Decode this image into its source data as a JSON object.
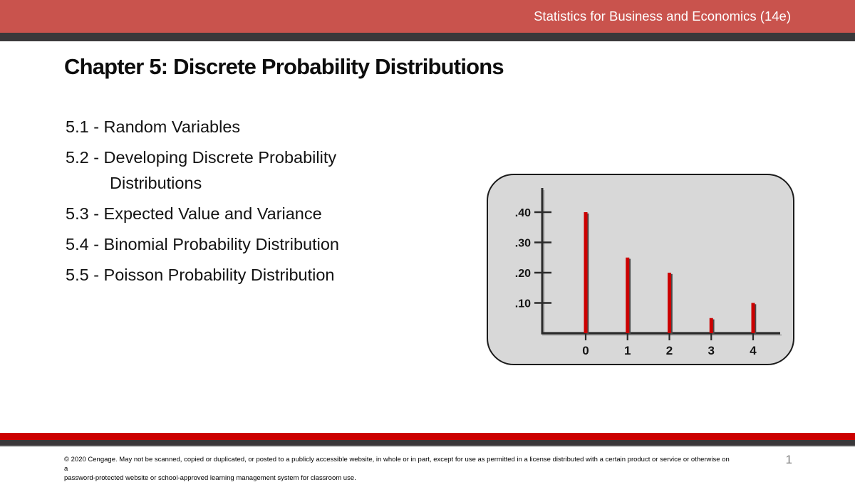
{
  "header": {
    "book_title": "Statistics for Business and Economics (14e)"
  },
  "slide": {
    "title": "Chapter 5: Discrete Probability Distributions",
    "items": [
      {
        "label": "5.1 - Random Variables"
      },
      {
        "label": "5.2 - Developing Discrete Probability Distributions"
      },
      {
        "label": "5.3 - Expected Value and Variance"
      },
      {
        "label": "5.4 - Binomial Probability Distribution"
      },
      {
        "label": "5.5 - Poisson Probability Distribution"
      }
    ]
  },
  "chart_data": {
    "type": "bar",
    "categories": [
      "0",
      "1",
      "2",
      "3",
      "4"
    ],
    "values": [
      0.4,
      0.25,
      0.2,
      0.05,
      0.1
    ],
    "ytick_labels": [
      ".10",
      ".20",
      ".30",
      ".40"
    ],
    "ytick_values": [
      0.1,
      0.2,
      0.3,
      0.4
    ],
    "ylim": [
      0,
      0.45
    ],
    "title": "",
    "xlabel": "",
    "ylabel": "",
    "grid": false,
    "legend": false,
    "bar_color": "#cc0000"
  },
  "footer": {
    "copyright_line1": "© 2020 Cengage.  May not be scanned, copied or duplicated, or posted to a publicly accessible website, in whole or in part, except for use as permitted in a license distributed with a certain product or service or otherwise on a",
    "copyright_line2": "password-protected website or school-approved learning management system for classroom use.",
    "page_number": "1"
  },
  "colors": {
    "header_red": "#c9534d",
    "accent_dark": "#3a383a",
    "footer_red": "#cc0000",
    "panel_gray": "#d8d8d8",
    "bar_red": "#cc0000",
    "page_number_gray": "#808080"
  }
}
